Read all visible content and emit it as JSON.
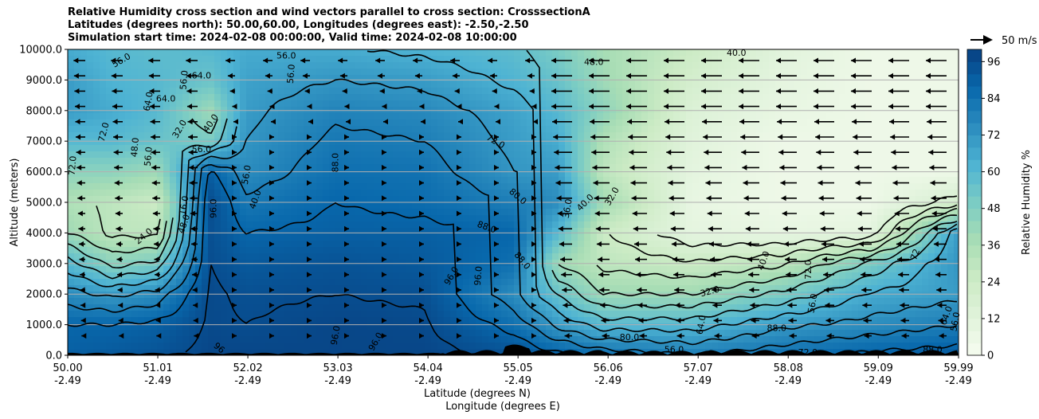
{
  "chart_data": {
    "type": "heatmap",
    "title_lines": [
      "Relative Humidity cross section and wind vectors parallel to cross section: CrosssectionA",
      "Latitudes (degrees north): 50.00,60.00, Longitudes (degrees east): -2.50,-2.50",
      "Simulation start time: 2024-02-08 00:00:00, Valid time: 2024-02-08 10:00:00"
    ],
    "xlabel_lines": [
      "Latitude (degrees N)",
      "Longitude (degrees E)"
    ],
    "ylabel": "Altitude (meters)",
    "ylim": [
      0,
      10000
    ],
    "xlim": [
      50.0,
      59.99
    ],
    "y_ticks": [
      "0.0",
      "1000.0",
      "2000.0",
      "3000.0",
      "4000.0",
      "5000.0",
      "6000.0",
      "7000.0",
      "8000.0",
      "9000.0",
      "10000.0"
    ],
    "x_ticks": [
      {
        "lat": "50.00",
        "lon": "-2.49"
      },
      {
        "lat": "51.01",
        "lon": "-2.49"
      },
      {
        "lat": "52.02",
        "lon": "-2.49"
      },
      {
        "lat": "53.03",
        "lon": "-2.49"
      },
      {
        "lat": "54.04",
        "lon": "-2.49"
      },
      {
        "lat": "55.05",
        "lon": "-2.49"
      },
      {
        "lat": "56.06",
        "lon": "-2.49"
      },
      {
        "lat": "57.07",
        "lon": "-2.49"
      },
      {
        "lat": "58.08",
        "lon": "-2.49"
      },
      {
        "lat": "59.09",
        "lon": "-2.49"
      },
      {
        "lat": "59.99",
        "lon": "-2.49"
      }
    ],
    "grid": "horizontal",
    "colorbar": {
      "label": "Relative Humidity %",
      "ticks": [
        "0",
        "12",
        "24",
        "36",
        "48",
        "60",
        "72",
        "84",
        "96"
      ],
      "range": [
        0,
        100
      ],
      "colors": [
        "#f7fcf0",
        "#e0f3db",
        "#ccebc5",
        "#a8ddb5",
        "#7bccc4",
        "#4eb3d3",
        "#2b8cbe",
        "#0868ac",
        "#084081"
      ]
    },
    "quiver_key": "50 m/s",
    "rh_profile": [
      {
        "lat": 50.0,
        "rh": [
          90,
          88,
          75,
          60,
          40,
          35,
          45,
          60,
          70,
          70,
          65
        ]
      },
      {
        "lat": 50.5,
        "rh": [
          92,
          88,
          70,
          45,
          30,
          30,
          45,
          60,
          65,
          62,
          60
        ]
      },
      {
        "lat": 51.0,
        "rh": [
          94,
          90,
          75,
          50,
          30,
          25,
          40,
          55,
          60,
          60,
          58
        ]
      },
      {
        "lat": 51.6,
        "rh": [
          98,
          97,
          97,
          96,
          95,
          96,
          90,
          50,
          40,
          55,
          60
        ]
      },
      {
        "lat": 52.0,
        "rh": [
          98,
          96,
          95,
          92,
          88,
          82,
          75,
          72,
          70,
          68,
          65
        ]
      },
      {
        "lat": 53.0,
        "rh": [
          98,
          98,
          96,
          94,
          90,
          88,
          85,
          82,
          78,
          72,
          65
        ]
      },
      {
        "lat": 54.0,
        "rh": [
          98,
          97,
          95,
          92,
          90,
          86,
          84,
          80,
          76,
          70,
          62
        ]
      },
      {
        "lat": 55.0,
        "rh": [
          95,
          85,
          75,
          85,
          88,
          80,
          72,
          70,
          68,
          62,
          58
        ]
      },
      {
        "lat": 55.5,
        "rh": [
          90,
          70,
          55,
          40,
          60,
          75,
          70,
          65,
          60,
          55,
          50
        ]
      },
      {
        "lat": 56.0,
        "rh": [
          85,
          60,
          40,
          30,
          25,
          40,
          30,
          35,
          45,
          40,
          38
        ]
      },
      {
        "lat": 57.0,
        "rh": [
          80,
          60,
          40,
          25,
          10,
          8,
          10,
          12,
          15,
          20,
          25
        ]
      },
      {
        "lat": 58.0,
        "rh": [
          85,
          70,
          50,
          30,
          8,
          5,
          5,
          5,
          8,
          10,
          12
        ]
      },
      {
        "lat": 59.0,
        "rh": [
          90,
          75,
          65,
          50,
          10,
          5,
          5,
          5,
          5,
          5,
          5
        ]
      },
      {
        "lat": 59.99,
        "rh": [
          92,
          80,
          70,
          72,
          70,
          20,
          5,
          5,
          5,
          5,
          5
        ]
      }
    ],
    "contour_labels": [
      {
        "text": "56.0",
        "lat": 50.6,
        "alt": 9650,
        "rot": -30
      },
      {
        "text": "64.0",
        "lat": 51.5,
        "alt": 9150,
        "rot": 0
      },
      {
        "text": "56.0",
        "lat": 51.3,
        "alt": 9000,
        "rot": -85
      },
      {
        "text": "64.0",
        "lat": 50.9,
        "alt": 8300,
        "rot": -80
      },
      {
        "text": "64.0",
        "lat": 51.1,
        "alt": 8400,
        "rot": 0
      },
      {
        "text": "72.0",
        "lat": 50.4,
        "alt": 7300,
        "rot": -75
      },
      {
        "text": "48.0",
        "lat": 50.75,
        "alt": 6800,
        "rot": -85
      },
      {
        "text": "56.0",
        "lat": 50.9,
        "alt": 6500,
        "rot": -85
      },
      {
        "text": "32.0",
        "lat": 51.25,
        "alt": 7400,
        "rot": -60
      },
      {
        "text": "40.0",
        "lat": 51.6,
        "alt": 7600,
        "rot": -55
      },
      {
        "text": "56.0",
        "lat": 51.5,
        "alt": 6750,
        "rot": 0
      },
      {
        "text": "72.0",
        "lat": 50.05,
        "alt": 6200,
        "rot": -85
      },
      {
        "text": "16.0",
        "lat": 51.3,
        "alt": 4900,
        "rot": -80
      },
      {
        "text": "24.0",
        "lat": 50.85,
        "alt": 3900,
        "rot": -40
      },
      {
        "text": "48.0",
        "lat": 51.3,
        "alt": 4300,
        "rot": -70
      },
      {
        "text": "96.0",
        "lat": 51.63,
        "alt": 4800,
        "rot": -90
      },
      {
        "text": "40.0",
        "lat": 52.1,
        "alt": 5100,
        "rot": -70
      },
      {
        "text": "56.0",
        "lat": 52.0,
        "alt": 5900,
        "rot": -80
      },
      {
        "text": "56.0",
        "lat": 52.45,
        "alt": 9800,
        "rot": 0
      },
      {
        "text": "56.0",
        "lat": 52.5,
        "alt": 9200,
        "rot": -85
      },
      {
        "text": "88.0",
        "lat": 53.0,
        "alt": 6300,
        "rot": -90
      },
      {
        "text": "72.0",
        "lat": 54.8,
        "alt": 7000,
        "rot": 30
      },
      {
        "text": "80.0",
        "lat": 55.05,
        "alt": 5200,
        "rot": 40
      },
      {
        "text": "88.0",
        "lat": 54.7,
        "alt": 4200,
        "rot": 20
      },
      {
        "text": "96.0",
        "lat": 54.3,
        "alt": 2600,
        "rot": -60
      },
      {
        "text": "88.0",
        "lat": 55.1,
        "alt": 3100,
        "rot": 50
      },
      {
        "text": "96.0",
        "lat": 54.6,
        "alt": 2600,
        "rot": -85
      },
      {
        "text": "96.0",
        "lat": 53.0,
        "alt": 650,
        "rot": -80
      },
      {
        "text": "96.0",
        "lat": 53.45,
        "alt": 450,
        "rot": -60
      },
      {
        "text": "96",
        "lat": 51.7,
        "alt": 250,
        "rot": 40
      },
      {
        "text": "36.0",
        "lat": 55.6,
        "alt": 4800,
        "rot": -80
      },
      {
        "text": "40.0",
        "lat": 55.8,
        "alt": 5000,
        "rot": -45
      },
      {
        "text": "32.0",
        "lat": 56.1,
        "alt": 5200,
        "rot": -60
      },
      {
        "text": "48.0",
        "lat": 55.9,
        "alt": 9600,
        "rot": 0
      },
      {
        "text": "40.0",
        "lat": 57.5,
        "alt": 9900,
        "rot": 0
      },
      {
        "text": "32.0",
        "lat": 57.2,
        "alt": 2100,
        "rot": -15
      },
      {
        "text": "40.0",
        "lat": 57.8,
        "alt": 3100,
        "rot": -70
      },
      {
        "text": "72.0",
        "lat": 58.3,
        "alt": 2800,
        "rot": -90
      },
      {
        "text": "56.0",
        "lat": 58.35,
        "alt": 1700,
        "rot": -80
      },
      {
        "text": "88.0",
        "lat": 57.95,
        "alt": 900,
        "rot": 0
      },
      {
        "text": "80.0",
        "lat": 56.3,
        "alt": 600,
        "rot": 0
      },
      {
        "text": "56.0",
        "lat": 56.8,
        "alt": 200,
        "rot": 0
      },
      {
        "text": "64.0",
        "lat": 57.1,
        "alt": 1000,
        "rot": -80
      },
      {
        "text": "72",
        "lat": 59.5,
        "alt": 3300,
        "rot": -70
      },
      {
        "text": "64.0",
        "lat": 59.85,
        "alt": 1300,
        "rot": -70
      },
      {
        "text": "56.0",
        "lat": 59.95,
        "alt": 1100,
        "rot": -80
      },
      {
        "text": "88.0",
        "lat": 59.7,
        "alt": 200,
        "rot": 0
      },
      {
        "text": "72.0",
        "lat": 58.3,
        "alt": 100,
        "rot": 0
      }
    ],
    "wind_note": "Vectors are predominantly westward (pointing toward lower latitude) in the northern half, near-calm in the middle."
  }
}
